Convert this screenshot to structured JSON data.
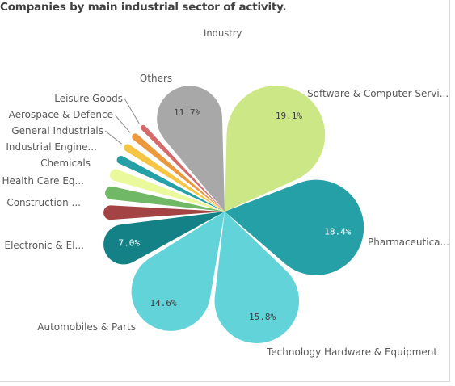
{
  "chart_data": {
    "type": "pie",
    "title": "Companies by main industrial sector of activity.",
    "dimension_label": "Industry",
    "categories": [
      "Software & Computer Servi...",
      "Pharmaceutica...",
      "Technology Hardware & Equipment",
      "Automobiles & Parts",
      "Electronic & El...",
      "Construction ...",
      "Health Care Eq...",
      "Chemicals",
      "Industrial Engine...",
      "General Industrials",
      "Aerospace & Defence",
      "Leisure Goods",
      "Others"
    ],
    "values": [
      19.1,
      18.4,
      15.8,
      14.6,
      7.0,
      2.9,
      2.7,
      2.5,
      2.0,
      1.9,
      1.8,
      1.6,
      11.7
    ],
    "value_labels": [
      "19.1%",
      "18.4%",
      "15.8%",
      "14.6%",
      "7.0%",
      "",
      "",
      "",
      "",
      "",
      "",
      "",
      "11.7%"
    ],
    "colors": [
      "#cce785",
      "#26a0a7",
      "#63d3da",
      "#63d3da",
      "#138185",
      "#a34343",
      "#70b865",
      "#eaf99c",
      "#26a0a7",
      "#f5c543",
      "#ec983d",
      "#d66a6a",
      "#a8a8a8"
    ]
  }
}
